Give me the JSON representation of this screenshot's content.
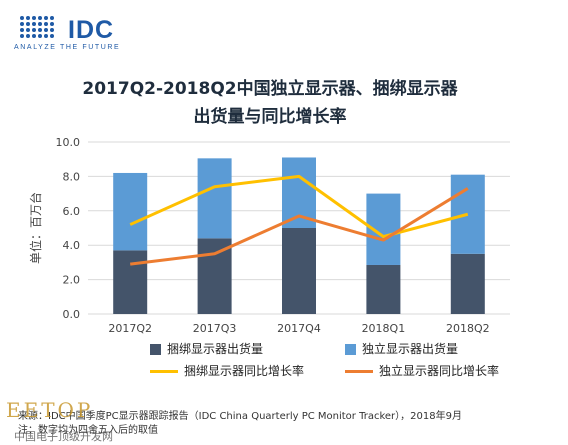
{
  "logo": {
    "text": "IDC",
    "tagline": "ANALYZE THE FUTURE"
  },
  "chart_data": {
    "type": "bar",
    "title_line1": "2017Q2-2018Q2中国独立显示器、捆绑显示器",
    "title_line2": "出货量与同比增长率",
    "ylabel": "单位：百万台",
    "ylim": [
      0,
      10
    ],
    "yticks": [
      "0.0",
      "2.0",
      "4.0",
      "6.0",
      "8.0",
      "10.0"
    ],
    "grid": true,
    "legend_position": "bottom",
    "categories": [
      "2017Q2",
      "2017Q3",
      "2017Q4",
      "2018Q1",
      "2018Q2"
    ],
    "stacked_bars": [
      {
        "name": "捆绑显示器出货量",
        "color": "#44546a",
        "values": [
          3.7,
          4.4,
          5.0,
          2.85,
          3.5
        ]
      },
      {
        "name": "独立显示器出货量",
        "color": "#5b9bd5",
        "values": [
          4.5,
          4.65,
          4.1,
          4.15,
          4.6
        ]
      }
    ],
    "lines": [
      {
        "name": "捆绑显示器同比增长率",
        "color": "#ffc000",
        "values": [
          5.2,
          7.4,
          8.0,
          4.5,
          5.8
        ]
      },
      {
        "name": "独立显示器同比增长率",
        "color": "#ed7d31",
        "values": [
          2.9,
          3.5,
          5.7,
          4.3,
          7.3
        ]
      }
    ]
  },
  "footer": {
    "source": "来源：IDC中国季度PC显示器跟踪报告（IDC China Quarterly PC Monitor Tracker），2018年9月",
    "note": "注：数字均为四舍五入后的取值"
  },
  "watermark": {
    "text": "EETOP",
    "subtext": "中国电子顶级开发网"
  }
}
